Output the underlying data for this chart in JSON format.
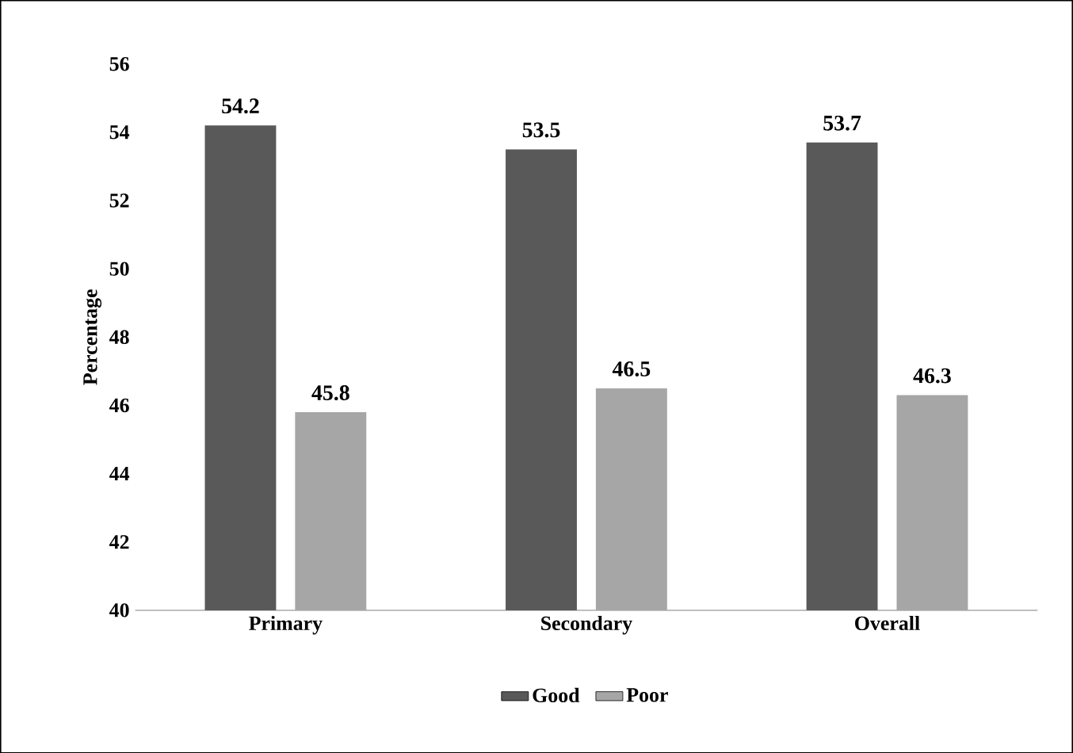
{
  "chart_data": {
    "type": "bar",
    "ylabel": "Percentage",
    "categories": [
      "Primary",
      "Secondary",
      "Overall"
    ],
    "series": [
      {
        "name": "Good",
        "color": "#595959",
        "values": [
          54.2,
          53.5,
          53.7
        ],
        "value_labels": [
          "54.2",
          "53.5",
          "53.7"
        ]
      },
      {
        "name": "Poor",
        "color": "#a6a6a6",
        "values": [
          45.8,
          46.5,
          46.3
        ],
        "value_labels": [
          "45.8",
          "46.5",
          "46.3"
        ]
      }
    ],
    "ylim": [
      40,
      56
    ],
    "yticks": [
      40,
      42,
      44,
      46,
      48,
      50,
      52,
      54,
      56
    ],
    "legend": "bottom"
  }
}
